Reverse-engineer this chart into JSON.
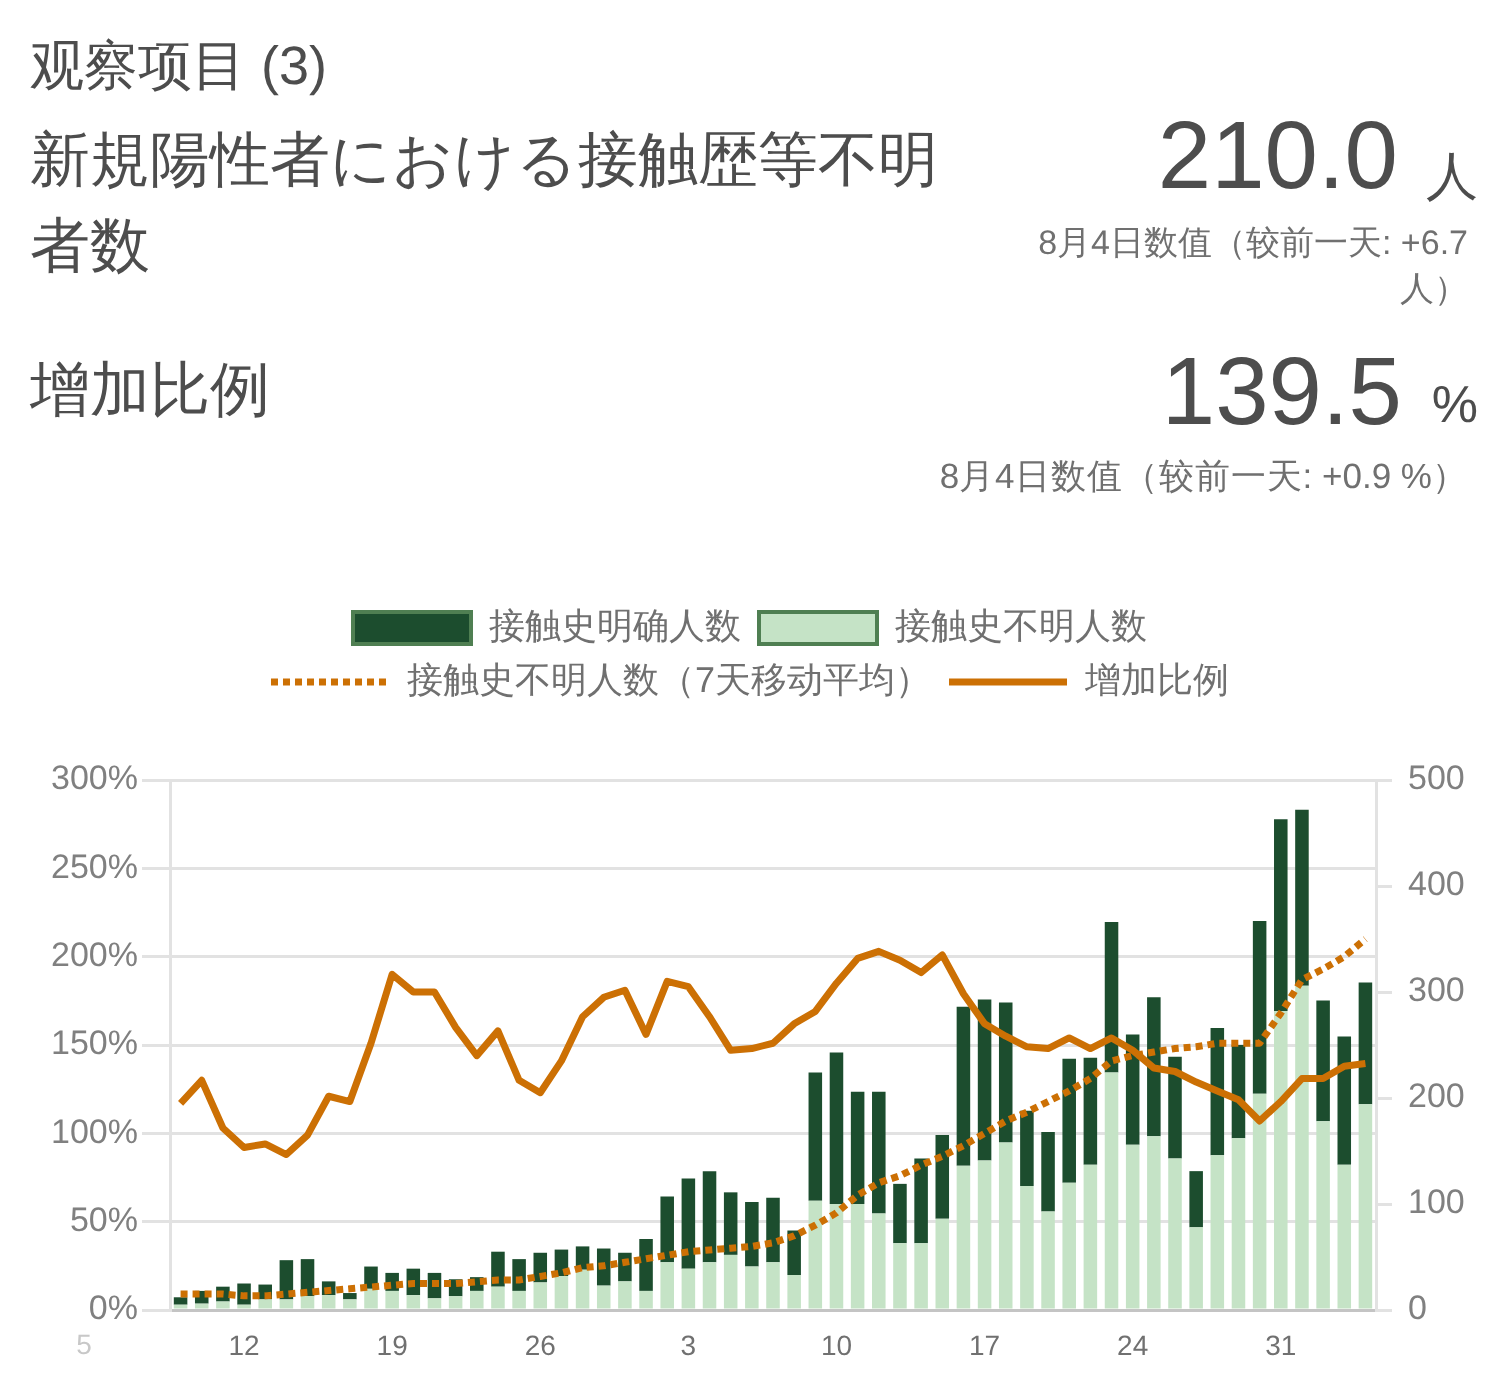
{
  "chart_data": {
    "type": "bar",
    "title": "观察项目 (3)",
    "subtitle": "新規陽性者における接触歴等不明者数",
    "annotations": [
      "210.0",
      "人",
      "8月4日数值（较前一天: +6.7 人）",
      "增加比例",
      "139.5",
      "%",
      "8月4日数值（较前一天: +0.9 %）",
      "5"
    ],
    "categories": [
      null,
      null,
      null,
      "12",
      null,
      null,
      null,
      null,
      null,
      null,
      "19",
      null,
      null,
      null,
      null,
      null,
      null,
      "26",
      null,
      null,
      null,
      null,
      null,
      null,
      "3",
      null,
      null,
      null,
      null,
      null,
      null,
      "10",
      null,
      null,
      null,
      null,
      null,
      null,
      "17",
      null,
      null,
      null,
      null,
      null,
      null,
      "24",
      null,
      null,
      null,
      null,
      null,
      null,
      "31",
      null,
      null,
      null,
      null
    ],
    "series": [
      {
        "name": "接触史不明人数",
        "axis": "y2",
        "color": "#c5e3c6",
        "values": [
          5,
          6,
          8,
          5,
          10,
          10,
          13,
          14,
          10,
          20,
          18,
          14,
          11,
          13,
          18,
          22,
          18,
          26,
          32,
          38,
          23,
          27,
          18,
          45,
          39,
          45,
          52,
          41,
          45,
          33,
          103,
          100,
          100,
          91,
          63,
          63,
          86,
          136,
          141,
          158,
          117,
          93,
          120,
          137,
          224,
          156,
          164,
          143,
          78,
          146,
          162,
          204,
          282,
          306,
          178,
          137,
          194
        ]
      },
      {
        "name": "接触史明确人数",
        "axis": "y2",
        "color": "#1c4d2e",
        "values": [
          7,
          12,
          14,
          20,
          14,
          37,
          35,
          13,
          6,
          21,
          17,
          25,
          24,
          16,
          13,
          33,
          30,
          28,
          25,
          22,
          35,
          27,
          49,
          62,
          85,
          86,
          59,
          61,
          61,
          42,
          121,
          143,
          106,
          115,
          56,
          80,
          79,
          150,
          152,
          132,
          71,
          75,
          117,
          101,
          142,
          104,
          131,
          96,
          53,
          120,
          88,
          163,
          181,
          166,
          114,
          121,
          115
        ]
      },
      {
        "name": "接触史不明人数（7天移动平均）",
        "type": "line",
        "line_style": "dotted",
        "color": "#cc7004",
        "values": [
          9,
          9,
          9,
          8,
          8,
          9,
          10,
          11,
          12,
          13,
          14,
          15,
          15,
          15,
          16,
          17,
          17,
          19,
          21,
          24,
          25,
          27,
          29,
          31,
          33,
          34,
          35,
          36,
          38,
          42,
          48,
          55,
          65,
          72,
          76,
          82,
          87,
          93,
          100,
          107,
          112,
          118,
          124,
          131,
          141,
          144,
          146,
          148,
          149,
          151,
          151,
          151,
          168,
          187,
          193,
          200,
          210
        ]
      },
      {
        "name": "增加比例",
        "type": "line",
        "line_style": "solid",
        "color": "#cc7004",
        "values": [
          117,
          130,
          103,
          92,
          94,
          88,
          99,
          121,
          118,
          151,
          190,
          180,
          180,
          160,
          144,
          158,
          130,
          123,
          141,
          166,
          177,
          181,
          156,
          186,
          183,
          166,
          147,
          148,
          151,
          162,
          169,
          185,
          199,
          203,
          198,
          191,
          201,
          179,
          162,
          155,
          149,
          148,
          154,
          148,
          154,
          147,
          137,
          135,
          129,
          124,
          119,
          107,
          118,
          131,
          131,
          138,
          139.5
        ]
      }
    ],
    "stacked": true,
    "ylim": [
      0,
      300
    ],
    "yticks": [
      {
        "value": 0,
        "label": "0%"
      },
      {
        "value": 50,
        "label": "50%"
      },
      {
        "value": 100,
        "label": "100%"
      },
      {
        "value": 150,
        "label": "150%"
      },
      {
        "value": 200,
        "label": "200%"
      },
      {
        "value": 250,
        "label": "250%"
      },
      {
        "value": 300,
        "label": "300%"
      }
    ],
    "y2lim": [
      0,
      500
    ],
    "y2ticks": [
      0,
      100,
      200,
      300,
      400,
      500
    ],
    "grid": "y",
    "legend": "top"
  }
}
